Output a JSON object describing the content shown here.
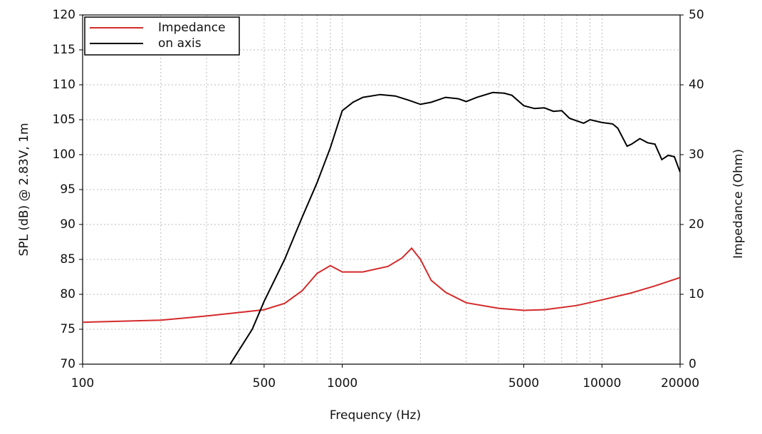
{
  "chart_data": {
    "type": "line",
    "xlabel": "Frequency (Hz)",
    "ylabel": "SPL (dB) @ 2.83V, 1m",
    "y2label": "Impedance (Ohm)",
    "xscale": "log",
    "grid": true,
    "legend": "upper left",
    "xlim": [
      100,
      20000
    ],
    "xticks": [
      100,
      500,
      1000,
      5000,
      10000,
      20000
    ],
    "xgrid_minor": [
      200,
      300,
      400,
      600,
      700,
      800,
      900,
      2000,
      3000,
      4000,
      6000,
      7000,
      8000,
      9000
    ],
    "ylim": [
      70,
      120
    ],
    "yticks": [
      70,
      75,
      80,
      85,
      90,
      95,
      100,
      105,
      110,
      115,
      120
    ],
    "y2lim": [
      0,
      50
    ],
    "y2ticks": [
      0,
      10,
      20,
      30,
      40,
      50
    ],
    "series": [
      {
        "name": "Impedance",
        "color": "#d42a2a",
        "axis": "y2",
        "x": [
          100,
          200,
          300,
          400,
          500,
          600,
          700,
          800,
          900,
          1000,
          1200,
          1500,
          1700,
          1850,
          2000,
          2200,
          2500,
          3000,
          4000,
          5000,
          6000,
          8000,
          10000,
          13000,
          16000,
          20000
        ],
        "values": [
          6.0,
          6.3,
          6.9,
          7.4,
          7.8,
          8.7,
          10.5,
          13.0,
          14.1,
          13.2,
          13.2,
          14.0,
          15.2,
          16.6,
          15.0,
          12.0,
          10.3,
          8.8,
          8.0,
          7.7,
          7.8,
          8.4,
          9.2,
          10.2,
          11.2,
          12.4
        ]
      },
      {
        "name": "on axis",
        "color": "#000000",
        "x": [
          370,
          450,
          500,
          600,
          700,
          800,
          900,
          1000,
          1100,
          1200,
          1400,
          1600,
          1800,
          2000,
          2200,
          2500,
          2800,
          3000,
          3300,
          3800,
          4200,
          4500,
          5000,
          5500,
          6000,
          6500,
          7000,
          7500,
          8500,
          9000,
          10000,
          11000,
          11500,
          12500,
          13000,
          14000,
          15000,
          16000,
          17000,
          18000,
          19000,
          20000
        ],
        "values": [
          70,
          75,
          79,
          85,
          91,
          96,
          101,
          106.3,
          107.5,
          108.2,
          108.6,
          108.4,
          107.8,
          107.2,
          107.5,
          108.2,
          108,
          107.6,
          108.2,
          108.9,
          108.8,
          108.5,
          107,
          106.6,
          106.7,
          106.2,
          106.3,
          105.2,
          104.5,
          105,
          104.6,
          104.4,
          103.8,
          101.2,
          101.5,
          102.3,
          101.7,
          101.5,
          99.3,
          99.9,
          99.7,
          97.5
        ]
      }
    ]
  }
}
